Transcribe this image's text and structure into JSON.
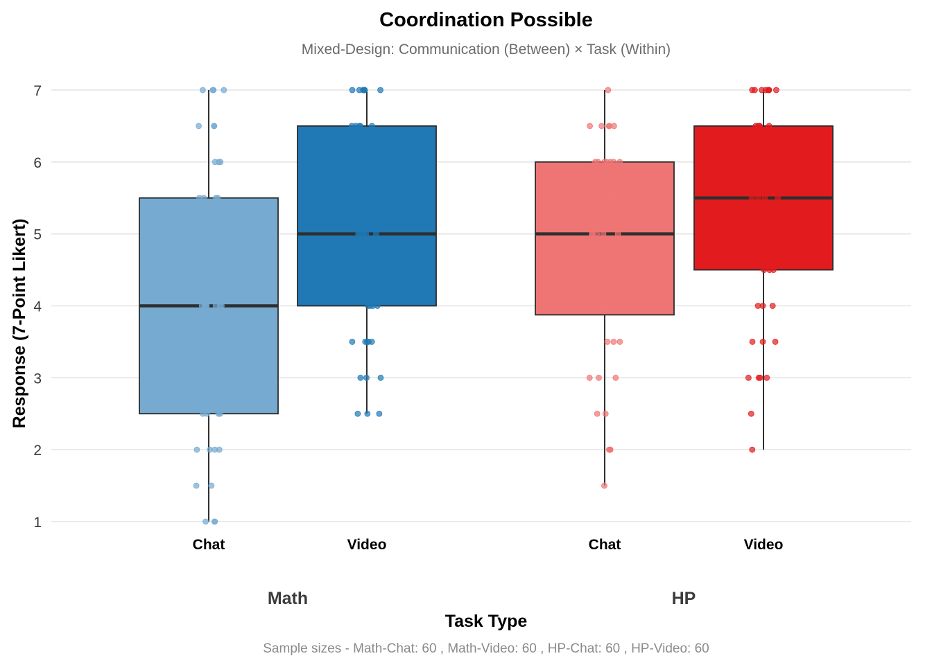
{
  "chart_data": {
    "type": "box",
    "title": "Coordination Possible",
    "subtitle": "Mixed-Design: Communication (Between) × Task (Within)",
    "xlabel": "Task Type",
    "ylabel": "Response (7-Point Likert)",
    "caption": "Sample sizes - Math-Chat: 60 , Math-Video: 60 , HP-Chat: 60 , HP-Video: 60",
    "ylim": [
      1,
      7
    ],
    "yticks": [
      1,
      2,
      3,
      4,
      5,
      6,
      7
    ],
    "grid": true,
    "groups": [
      "Math",
      "HP"
    ],
    "series": [
      {
        "group": "Math",
        "category": "Chat",
        "color": "#76aad0",
        "q1": 2.5,
        "median": 4.0,
        "q3": 5.5,
        "whisker_low": 1.0,
        "whisker_high": 7.0,
        "points": [
          7,
          7,
          7,
          7,
          6.5,
          6.5,
          6.5,
          6,
          6,
          6,
          5.5,
          5.5,
          5.5,
          5.5,
          5,
          5,
          5,
          5,
          4.5,
          4.5,
          4.5,
          4.5,
          4,
          4,
          4,
          4,
          4,
          4,
          4,
          4,
          3.5,
          3.5,
          3.5,
          3.5,
          3,
          3,
          3,
          3,
          3,
          3,
          2.5,
          2.5,
          2.5,
          2.5,
          2,
          2,
          2,
          2,
          1.5,
          1.5,
          1,
          1,
          1
        ]
      },
      {
        "group": "Math",
        "category": "Video",
        "color": "#2079b5",
        "q1": 4.0,
        "median": 5.0,
        "q3": 6.5,
        "whisker_low": 2.5,
        "whisker_high": 7.0,
        "points": [
          7,
          7,
          7,
          7,
          7,
          7,
          7,
          6.5,
          6.5,
          6.5,
          6.5,
          6.5,
          5,
          5,
          5,
          5,
          5,
          4,
          4,
          4,
          4,
          3.5,
          3.5,
          3.5,
          3.5,
          3.5,
          3,
          3,
          3,
          2.5,
          2.5,
          2.5
        ]
      },
      {
        "group": "HP",
        "category": "Chat",
        "color": "#ef7575",
        "q1": 3.875,
        "median": 5.0,
        "q3": 6.0,
        "whisker_low": 1.5,
        "whisker_high": 7.0,
        "points": [
          7,
          6.5,
          6.5,
          6.5,
          6.5,
          6.5,
          6,
          6,
          6,
          6,
          6,
          6,
          6,
          5.5,
          5.5,
          5.5,
          5.5,
          5,
          5,
          5,
          5,
          5,
          4.5,
          4.5,
          4.5,
          4.5,
          4,
          4,
          4,
          4,
          4,
          4,
          4,
          3.5,
          3.5,
          3.5,
          3,
          3,
          3,
          2.5,
          2.5,
          2,
          2,
          2,
          1.5
        ]
      },
      {
        "group": "HP",
        "category": "Video",
        "color": "#e21c1e",
        "q1": 4.5,
        "median": 5.5,
        "q3": 6.5,
        "whisker_low": 2.0,
        "whisker_high": 7.0,
        "points": [
          7,
          7,
          7,
          7,
          7,
          7,
          7,
          7,
          6.5,
          6.5,
          6.5,
          6.5,
          6.5,
          5.5,
          5.5,
          5.5,
          5.5,
          4.5,
          4.5,
          4.5,
          4,
          4,
          4,
          3.5,
          3.5,
          3.5,
          3,
          3,
          3,
          3,
          2.5,
          2
        ]
      }
    ]
  }
}
